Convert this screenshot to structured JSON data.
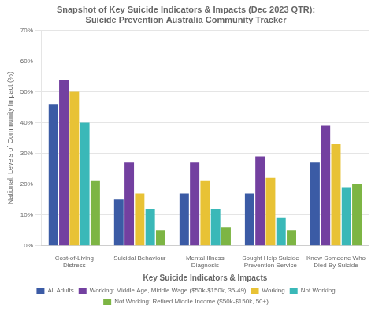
{
  "chart_data": {
    "type": "bar",
    "title": "Snapshot of Key Suicide Indicators & Impacts (Dec 2023 QTR):\nSuicide Prevention Australia Community Tracker",
    "xlabel": "Key Suicide Indicators & Impacts",
    "ylabel": "National: Levels of Community Impact (%)",
    "categories": [
      "Cost-of-Living\nDistress",
      "Suicidal Behaviour",
      "Mental Illness\nDiagnosis",
      "Sought Help Suicide\nPrevention Service",
      "Know Someone Who\nDied By Suicide"
    ],
    "series": [
      {
        "name": "All Adults",
        "color": "#3b5ba5",
        "values": [
          46,
          15,
          17,
          17,
          27
        ]
      },
      {
        "name": "Working: Middle Age, Middle Wage ($50k-$150k, 35-49)",
        "color": "#7340a0",
        "values": [
          54,
          27,
          27,
          29,
          39
        ]
      },
      {
        "name": "Working",
        "color": "#e8c235",
        "values": [
          50,
          17,
          21,
          22,
          33
        ]
      },
      {
        "name": "Not Working",
        "color": "#3ab8b8",
        "values": [
          40,
          12,
          12,
          9,
          19
        ]
      },
      {
        "name": "Not Working: Retired Middle Income ($50k-$150k, 50+)",
        "color": "#7db544",
        "values": [
          21,
          5,
          6,
          5,
          20
        ]
      }
    ],
    "ylim": [
      0,
      70
    ],
    "yticks": [
      {
        "value": 0,
        "label": "0%"
      },
      {
        "value": 10,
        "label": "10%"
      },
      {
        "value": 20,
        "label": "20%"
      },
      {
        "value": 30,
        "label": "30%"
      },
      {
        "value": 40,
        "label": "40%"
      },
      {
        "value": 50,
        "label": "50%"
      },
      {
        "value": 60,
        "label": "60%"
      },
      {
        "value": 70,
        "label": "70%"
      }
    ],
    "grid": true,
    "legend": "bottom"
  }
}
